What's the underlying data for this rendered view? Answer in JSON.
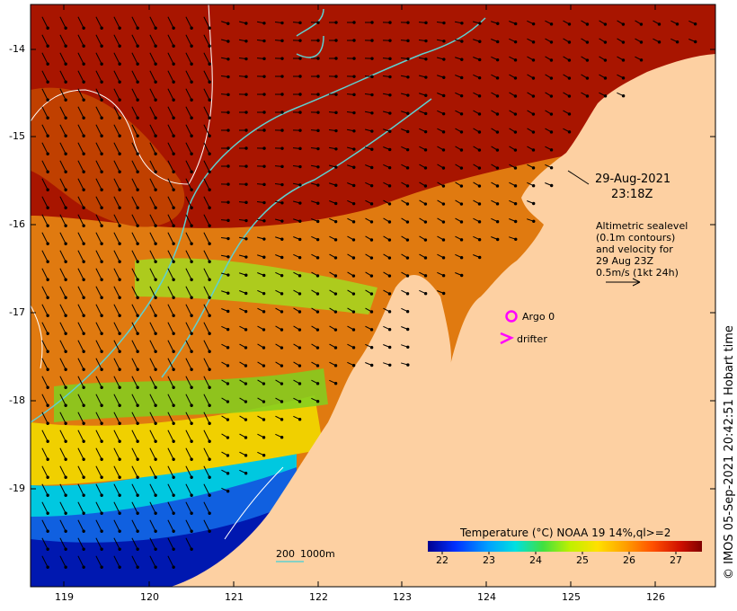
{
  "map": {
    "lat_ticks": [
      "-14",
      "-15",
      "-16",
      "-17",
      "-18",
      "-19"
    ],
    "lon_ticks": [
      "119",
      "120",
      "121",
      "122",
      "123",
      "124",
      "125",
      "126"
    ],
    "lon_range": [
      118.6,
      126.7
    ],
    "lat_range": [
      -13.7,
      -20.1
    ]
  },
  "annotation": {
    "date": "29-Aug-2021",
    "time": "23:18Z",
    "altimetry_lines": [
      "Altimetric sealevel",
      "(0.1m contours)",
      "and velocity for",
      "29 Aug 23Z",
      "0.5m/s (1kt 24h)"
    ]
  },
  "legend": {
    "argo_label": "Argo 0",
    "drifter_label": "drifter",
    "argo_color": "#ff00ff",
    "drifter_color": "#ff00ff"
  },
  "scale_bar": {
    "label_200": "200",
    "label_1000": "1000m",
    "color": "#5fd0d0"
  },
  "colorbar": {
    "title": "Temperature (°C) NOAA 19 14%,ql>=2",
    "ticks": [
      "22",
      "23",
      "24",
      "25",
      "26",
      "27"
    ],
    "range": [
      21.7,
      27.6
    ],
    "colors": [
      "#00008f",
      "#0030ff",
      "#00a0ff",
      "#00e0e0",
      "#40e040",
      "#c0f000",
      "#ffe000",
      "#ffa000",
      "#ff5000",
      "#d01000",
      "#800000"
    ]
  },
  "land_color": "#fdd0a2",
  "credit": "© IMOS 05-Sep-2021 20:42:51 Hobart time"
}
